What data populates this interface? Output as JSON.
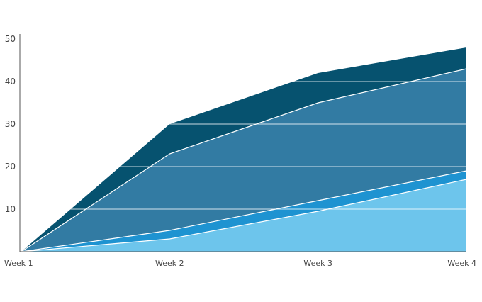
{
  "chart_data": {
    "type": "area",
    "stacked": true,
    "categories": [
      "Week 1",
      "Week 2",
      "Week 3",
      "Week 4"
    ],
    "ylim": [
      0,
      50
    ],
    "yticks": [
      10,
      20,
      30,
      40,
      50
    ],
    "grid": true,
    "legend": "none",
    "series": [
      {
        "values": [
          0,
          3,
          9.5,
          17
        ],
        "color": "#6dc5ec"
      },
      {
        "values": [
          0,
          2,
          2.5,
          2
        ],
        "color": "#1e93d1"
      },
      {
        "values": [
          0,
          18,
          23,
          24
        ],
        "color": "#327ba3"
      },
      {
        "values": [
          0,
          7,
          7,
          5
        ],
        "color": "#06526f"
      }
    ]
  }
}
